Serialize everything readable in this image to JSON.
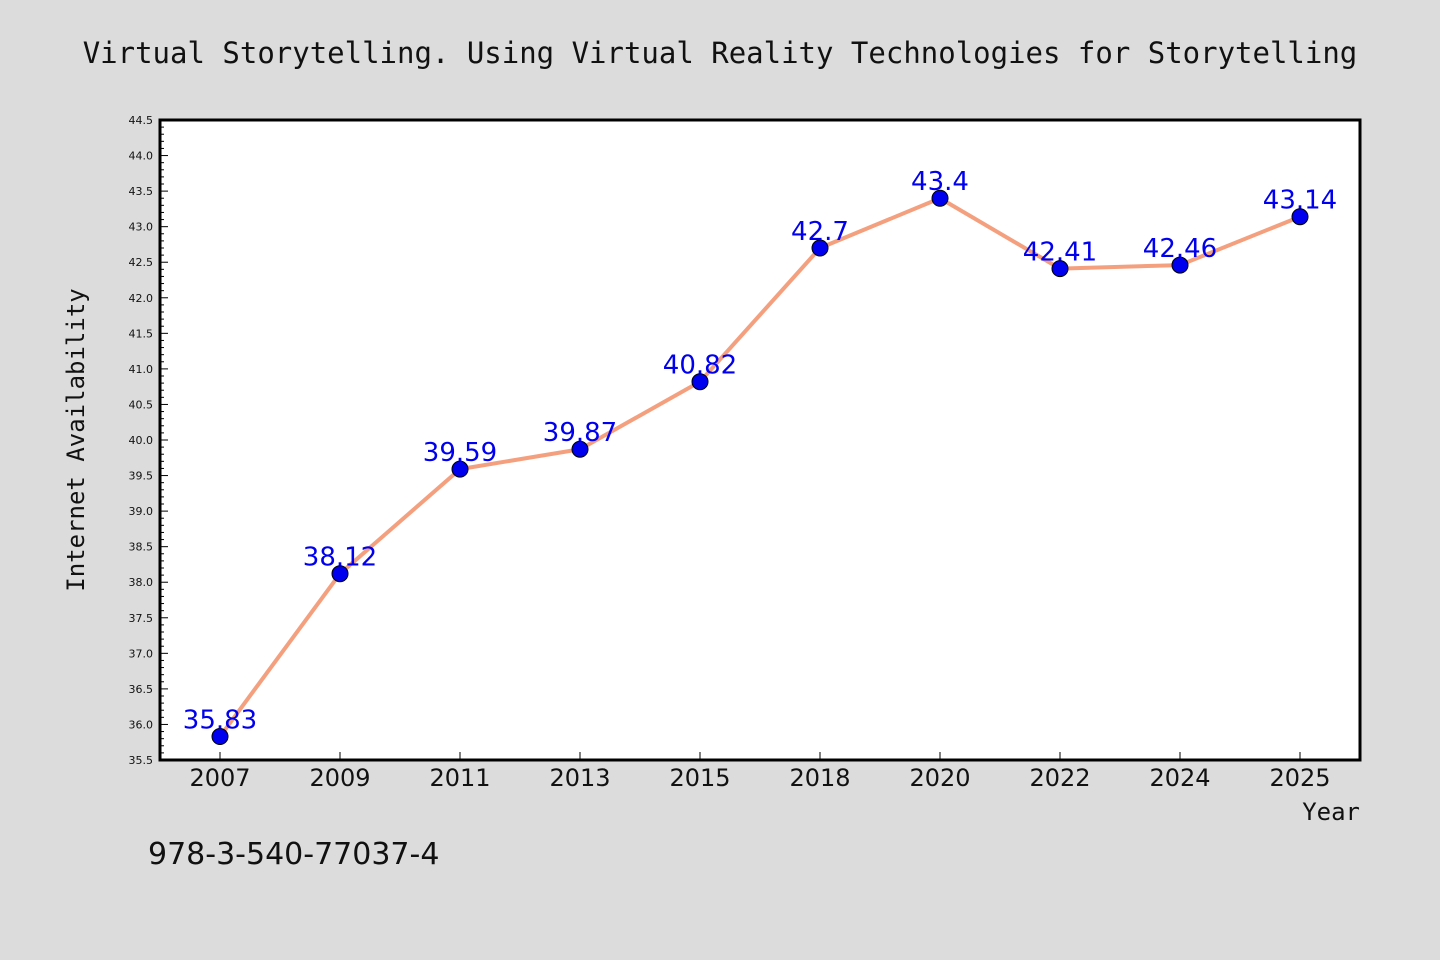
{
  "chart_data": {
    "type": "line",
    "title": "Virtual Storytelling. Using Virtual Reality Technologies for Storytelling",
    "xlabel": "Year",
    "ylabel": "Internet Availability",
    "categories": [
      "2007",
      "2009",
      "2011",
      "2013",
      "2015",
      "2018",
      "2020",
      "2022",
      "2024",
      "2025"
    ],
    "series": [
      {
        "values": [
          35.83,
          38.12,
          39.59,
          39.87,
          40.82,
          42.7,
          43.4,
          42.41,
          42.46,
          43.14
        ],
        "labels": [
          "35.83",
          "38.12",
          "39.59",
          "39.87",
          "40.82",
          "42.7",
          "43.4",
          "42.41",
          "42.46",
          "43.14"
        ],
        "line_color": "#f4a07e",
        "marker_color": "#0000ee"
      }
    ],
    "ylim": [
      35.5,
      44.5
    ],
    "yticks": [
      "35.5",
      "36.0",
      "36.5",
      "37.0",
      "37.5",
      "38.0",
      "38.5",
      "39.0",
      "39.5",
      "40.0",
      "40.5",
      "41.0",
      "41.5",
      "42.0",
      "42.5",
      "43.0",
      "43.5",
      "44.0",
      "44.5"
    ],
    "grid": false,
    "legend": "none",
    "background_color": "#dcdcdc",
    "plot_background_color": "#ffffff"
  },
  "annotation": "978-3-540-77037-4"
}
